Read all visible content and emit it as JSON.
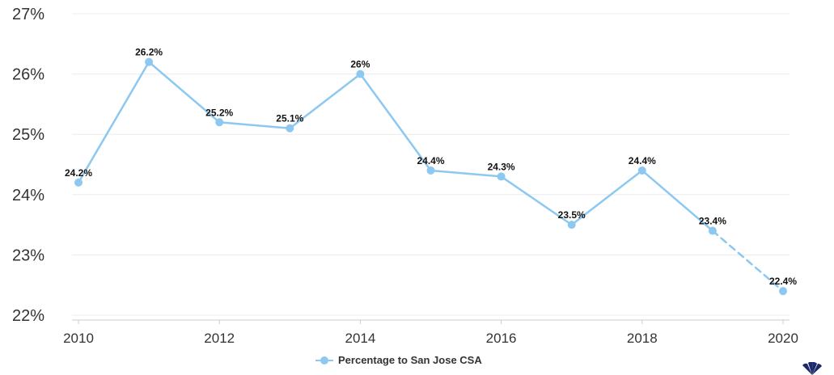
{
  "chart_data": {
    "type": "line",
    "x": [
      2010,
      2011,
      2012,
      2013,
      2014,
      2015,
      2016,
      2017,
      2018,
      2019,
      2020
    ],
    "xticks": [
      "2010",
      "2012",
      "2014",
      "2016",
      "2018",
      "2020"
    ],
    "yticks": [
      "22%",
      "23%",
      "24%",
      "25%",
      "26%",
      "27%"
    ],
    "ylim": [
      22,
      27
    ],
    "xlim": [
      2010,
      2020
    ],
    "grid": true,
    "legend_position": "bottom",
    "series": [
      {
        "name": "Percentage to San Jose CSA",
        "values": [
          24.2,
          26.2,
          25.2,
          25.1,
          26,
          24.4,
          24.3,
          23.5,
          24.4,
          23.4,
          22.4
        ],
        "labels": [
          "24.2%",
          "26.2%",
          "25.2%",
          "25.1%",
          "26%",
          "24.4%",
          "24.3%",
          "23.5%",
          "24.4%",
          "23.4%",
          "22.4%"
        ],
        "color": "#8cc8f0",
        "dashed_last_segment": true
      }
    ]
  },
  "legend": {
    "label": "Percentage to San Jose CSA"
  },
  "colors": {
    "series": "#8cc8f0",
    "grid": "#ececec",
    "text": "#333333"
  },
  "logo_icon": "peacock-logo-icon"
}
